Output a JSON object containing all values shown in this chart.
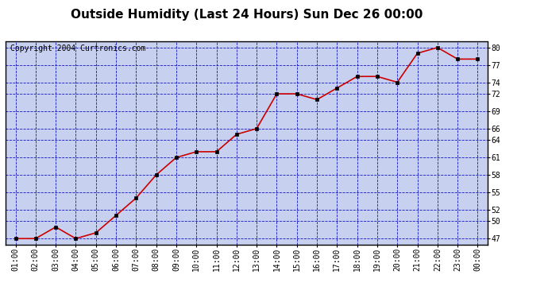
{
  "title": "Outside Humidity (Last 24 Hours) Sun Dec 26 00:00",
  "copyright": "Copyright 2004 Curtronics.com",
  "x_labels": [
    "01:00",
    "02:00",
    "03:00",
    "04:00",
    "05:00",
    "06:00",
    "07:00",
    "08:00",
    "09:00",
    "10:00",
    "11:00",
    "12:00",
    "13:00",
    "14:00",
    "15:00",
    "16:00",
    "17:00",
    "18:00",
    "19:00",
    "20:00",
    "21:00",
    "22:00",
    "23:00",
    "00:00"
  ],
  "y_values": [
    47,
    47,
    49,
    47,
    48,
    51,
    54,
    58,
    61,
    62,
    62,
    65,
    66,
    72,
    72,
    71,
    73,
    75,
    75,
    74,
    79,
    80,
    78,
    78
  ],
  "ylim": [
    46,
    81
  ],
  "yticks": [
    47,
    50,
    52,
    55,
    58,
    61,
    64,
    66,
    69,
    72,
    74,
    77,
    80
  ],
  "line_color": "#cc0000",
  "marker_color": "#000000",
  "plot_bg": "#c8d0f0",
  "fig_bg": "#ffffff",
  "grid_color": "#0000bb",
  "title_fontsize": 11,
  "copyright_fontsize": 7,
  "tick_fontsize": 7,
  "border_color": "#000000"
}
